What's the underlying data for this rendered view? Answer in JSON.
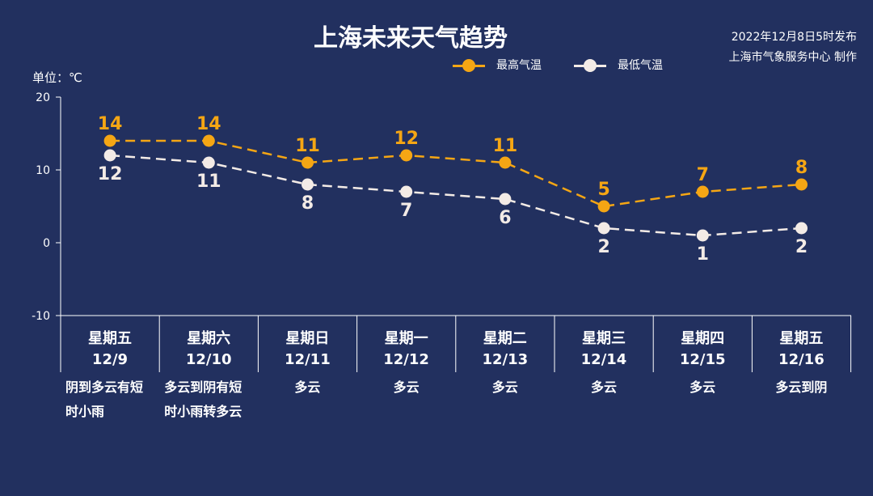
{
  "title": "上海未来天气趋势",
  "publish": {
    "time": "2022年12月8日5时发布",
    "source": "上海市气象服务中心 制作"
  },
  "unit": "单位：℃",
  "colors": {
    "background": "#22305f",
    "high": "#f5a614",
    "low": "#f3ebe6",
    "axis": "#ffffff"
  },
  "legend": [
    {
      "label": "最高气温",
      "color": "#f5a614"
    },
    {
      "label": "最低气温",
      "color": "#f3ebe6"
    }
  ],
  "days": [
    {
      "weekday": "星期五",
      "date": "12/9",
      "weather": [
        "阴到多云有短",
        "时小雨"
      ]
    },
    {
      "weekday": "星期六",
      "date": "12/10",
      "weather": [
        "多云到阴有短",
        "时小雨转多云"
      ]
    },
    {
      "weekday": "星期日",
      "date": "12/11",
      "weather": [
        "多云"
      ]
    },
    {
      "weekday": "星期一",
      "date": "12/12",
      "weather": [
        "多云"
      ]
    },
    {
      "weekday": "星期二",
      "date": "12/13",
      "weather": [
        "多云"
      ]
    },
    {
      "weekday": "星期三",
      "date": "12/14",
      "weather": [
        "多云"
      ]
    },
    {
      "weekday": "星期四",
      "date": "12/15",
      "weather": [
        "多云"
      ]
    },
    {
      "weekday": "星期五",
      "date": "12/16",
      "weather": [
        "多云到阴"
      ]
    }
  ],
  "chart_data": {
    "type": "line",
    "title": "上海未来天气趋势",
    "ylabel": "单位：℃",
    "categories": [
      "12/9",
      "12/10",
      "12/11",
      "12/12",
      "12/13",
      "12/14",
      "12/15",
      "12/16"
    ],
    "ylim": [
      -10,
      20
    ],
    "yticks": [
      20,
      10,
      0,
      -10
    ],
    "grid": false,
    "legend_position": "top-right",
    "series": [
      {
        "name": "最高气温",
        "color": "#f5a614",
        "values": [
          14,
          14,
          11,
          12,
          11,
          5,
          7,
          8
        ]
      },
      {
        "name": "最低气温",
        "color": "#f3ebe6",
        "values": [
          12,
          11,
          8,
          7,
          6,
          2,
          1,
          2
        ]
      }
    ]
  }
}
